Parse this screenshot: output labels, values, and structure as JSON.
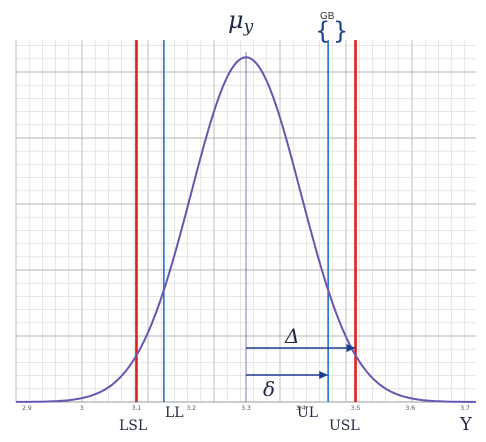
{
  "diagram": {
    "x_ticks": [
      "2.9",
      "3",
      "3.1",
      "3.2",
      "3.3",
      "3.4",
      "3.5",
      "3.6",
      "3.7"
    ],
    "x_axis_label": "Y",
    "mean_label": "μ",
    "mean_subscript": "y",
    "guard_band_label": "GB",
    "lsl_label": "LSL",
    "ll_label": "LL",
    "ul_label": "UL",
    "usl_label": "USL",
    "delta_big": "Δ",
    "delta_small": "δ",
    "colors": {
      "spec_limit": "#e01e1e",
      "acceptance_limit": "#1f73c8",
      "curve": "#6a55b0",
      "arrow": "#1f3f8f",
      "grid_minor": "#d7d7d7",
      "grid_major": "#b5b5b5"
    }
  },
  "chart_data": {
    "type": "line",
    "series": [
      {
        "x": [
          2.9,
          2.95,
          3.0,
          3.05,
          3.1,
          3.15,
          3.2,
          3.25,
          3.3,
          3.35,
          3.4,
          3.45,
          3.5,
          3.55,
          3.6,
          3.65,
          3.7
        ],
        "values": [
          0.0,
          0.001,
          0.011,
          0.044,
          0.135,
          0.325,
          0.607,
          0.882,
          1.0,
          0.882,
          0.607,
          0.325,
          0.135,
          0.044,
          0.011,
          0.001,
          0.0
        ]
      }
    ],
    "mean": 3.3,
    "limits": {
      "LSL": 3.1,
      "LL": 3.15,
      "UL": 3.45,
      "USL": 3.5
    },
    "xlim": [
      2.88,
      3.72
    ],
    "ylim": [
      0,
      1.05
    ],
    "grid": true
  }
}
